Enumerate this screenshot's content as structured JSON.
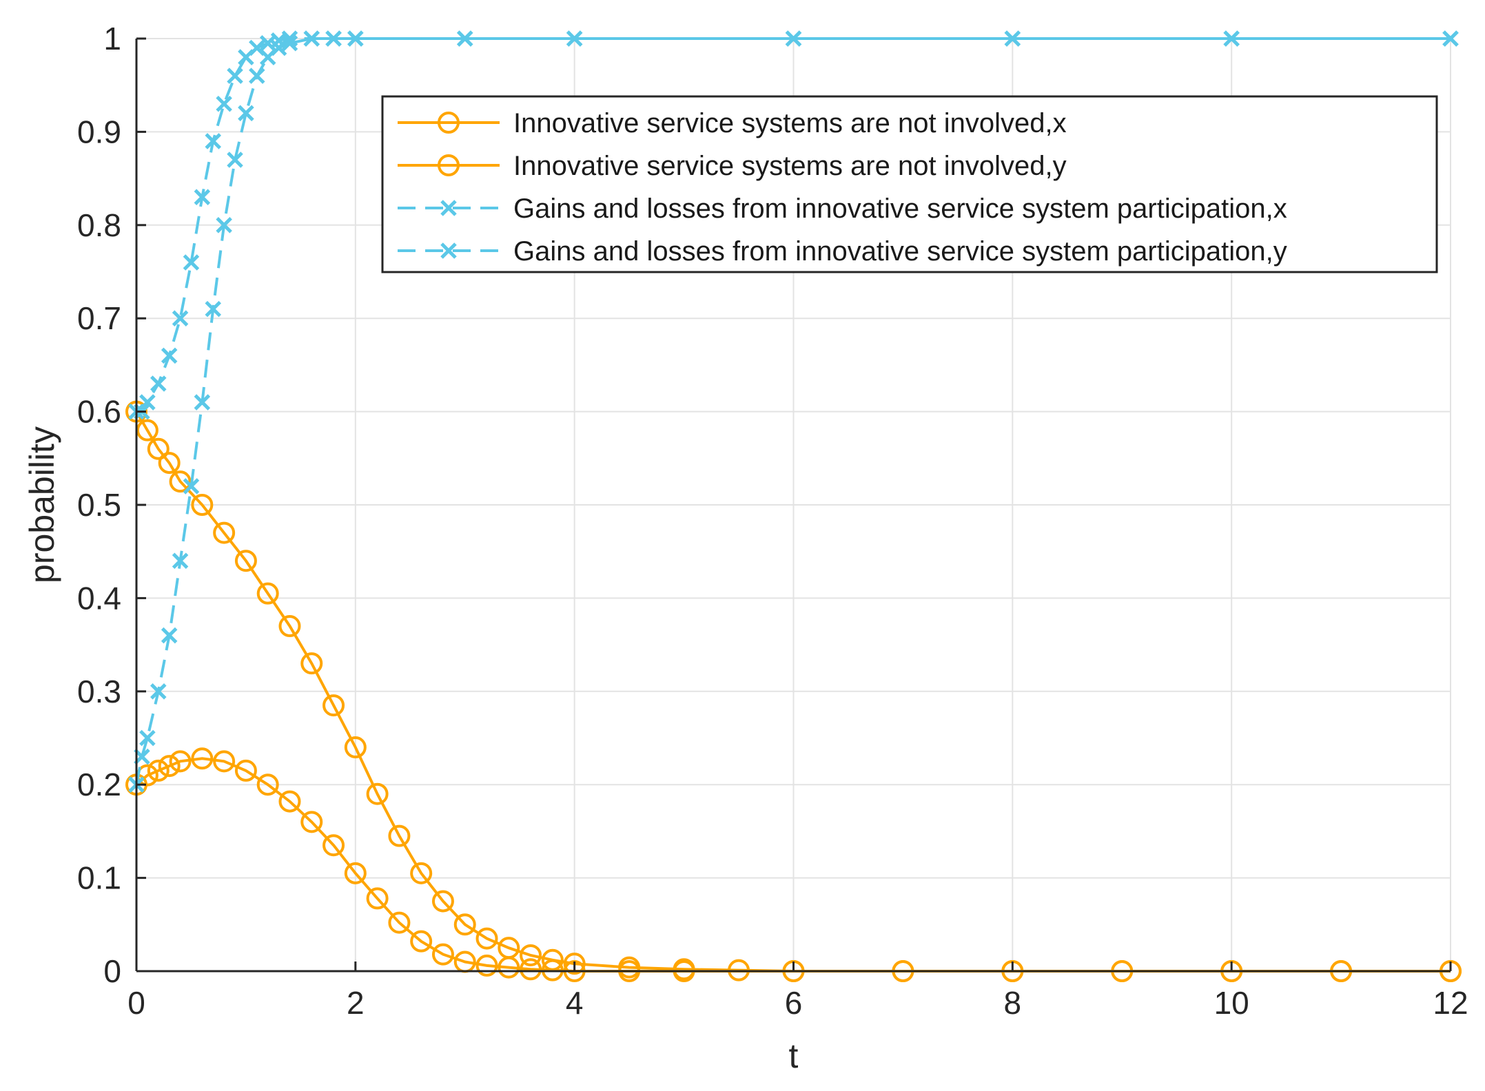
{
  "chart_data": {
    "type": "line",
    "title": "",
    "xlabel": "t",
    "ylabel": "probability",
    "xlim": [
      0,
      12
    ],
    "ylim": [
      0,
      1
    ],
    "xticks": [
      "0",
      "2",
      "4",
      "6",
      "8",
      "10",
      "12"
    ],
    "yticks": [
      "0",
      "0.1",
      "0.2",
      "0.3",
      "0.4",
      "0.5",
      "0.6",
      "0.7",
      "0.8",
      "0.9",
      "1"
    ],
    "grid": true,
    "legend_position": "top-right",
    "series": [
      {
        "name": "Innovative service systems are not involved,x",
        "color": "#FFA500",
        "line_style": "solid",
        "marker": "circle",
        "x": [
          0,
          0.1,
          0.2,
          0.3,
          0.4,
          0.6,
          0.8,
          1.0,
          1.2,
          1.4,
          1.6,
          1.8,
          2.0,
          2.2,
          2.4,
          2.6,
          2.8,
          3.0,
          3.2,
          3.4,
          3.6,
          3.8,
          4.0,
          4.5,
          5.0,
          5.5,
          6.0,
          7.0,
          8.0,
          9.0,
          10.0,
          11.0,
          12.0
        ],
        "y": [
          0.6,
          0.58,
          0.56,
          0.545,
          0.525,
          0.5,
          0.47,
          0.44,
          0.405,
          0.37,
          0.33,
          0.285,
          0.24,
          0.19,
          0.145,
          0.105,
          0.075,
          0.05,
          0.035,
          0.025,
          0.017,
          0.012,
          0.008,
          0.004,
          0.002,
          0.001,
          0.0,
          0.0,
          0.0,
          0.0,
          0.0,
          0.0,
          0.0
        ]
      },
      {
        "name": "Innovative service systems are not involved,y",
        "color": "#FFA500",
        "line_style": "solid",
        "marker": "circle",
        "x": [
          0,
          0.1,
          0.2,
          0.3,
          0.4,
          0.6,
          0.8,
          1.0,
          1.2,
          1.4,
          1.6,
          1.8,
          2.0,
          2.2,
          2.4,
          2.6,
          2.8,
          3.0,
          3.2,
          3.4,
          3.6,
          3.8,
          4.0,
          4.5,
          5.0,
          6.0,
          7.0,
          8.0,
          9.0,
          10.0,
          11.0,
          12.0
        ],
        "y": [
          0.2,
          0.21,
          0.215,
          0.22,
          0.225,
          0.228,
          0.225,
          0.215,
          0.2,
          0.182,
          0.16,
          0.135,
          0.105,
          0.078,
          0.052,
          0.032,
          0.018,
          0.01,
          0.006,
          0.004,
          0.002,
          0.001,
          0.0,
          0.0,
          0.0,
          0.0,
          0.0,
          0.0,
          0.0,
          0.0,
          0.0,
          0.0
        ]
      },
      {
        "name": "Gains and losses from innovative service system participation,x",
        "color": "#5BC8E8",
        "line_style": "dashed",
        "marker": "x",
        "x": [
          0,
          0.05,
          0.1,
          0.2,
          0.3,
          0.4,
          0.5,
          0.6,
          0.7,
          0.8,
          0.9,
          1.0,
          1.1,
          1.2,
          1.3,
          1.4,
          1.6,
          1.8,
          2.0,
          3.0,
          4.0,
          6.0,
          8.0,
          10.0,
          12.0
        ],
        "y": [
          0.6,
          0.6,
          0.61,
          0.63,
          0.66,
          0.7,
          0.76,
          0.83,
          0.89,
          0.93,
          0.96,
          0.98,
          0.99,
          0.995,
          0.998,
          1.0,
          1.0,
          1.0,
          1.0,
          1.0,
          1.0,
          1.0,
          1.0,
          1.0,
          1.0
        ]
      },
      {
        "name": "Gains and losses from innovative service system participation,y",
        "color": "#5BC8E8",
        "line_style": "dashed",
        "marker": "x",
        "x": [
          0,
          0.05,
          0.1,
          0.2,
          0.3,
          0.4,
          0.5,
          0.6,
          0.7,
          0.8,
          0.9,
          1.0,
          1.1,
          1.2,
          1.3,
          1.4,
          1.6,
          1.8,
          2.0,
          3.0,
          4.0,
          6.0,
          8.0,
          10.0,
          12.0
        ],
        "y": [
          0.2,
          0.23,
          0.25,
          0.3,
          0.36,
          0.44,
          0.52,
          0.61,
          0.71,
          0.8,
          0.87,
          0.92,
          0.96,
          0.98,
          0.99,
          0.995,
          1.0,
          1.0,
          1.0,
          1.0,
          1.0,
          1.0,
          1.0,
          1.0,
          1.0
        ]
      }
    ]
  }
}
